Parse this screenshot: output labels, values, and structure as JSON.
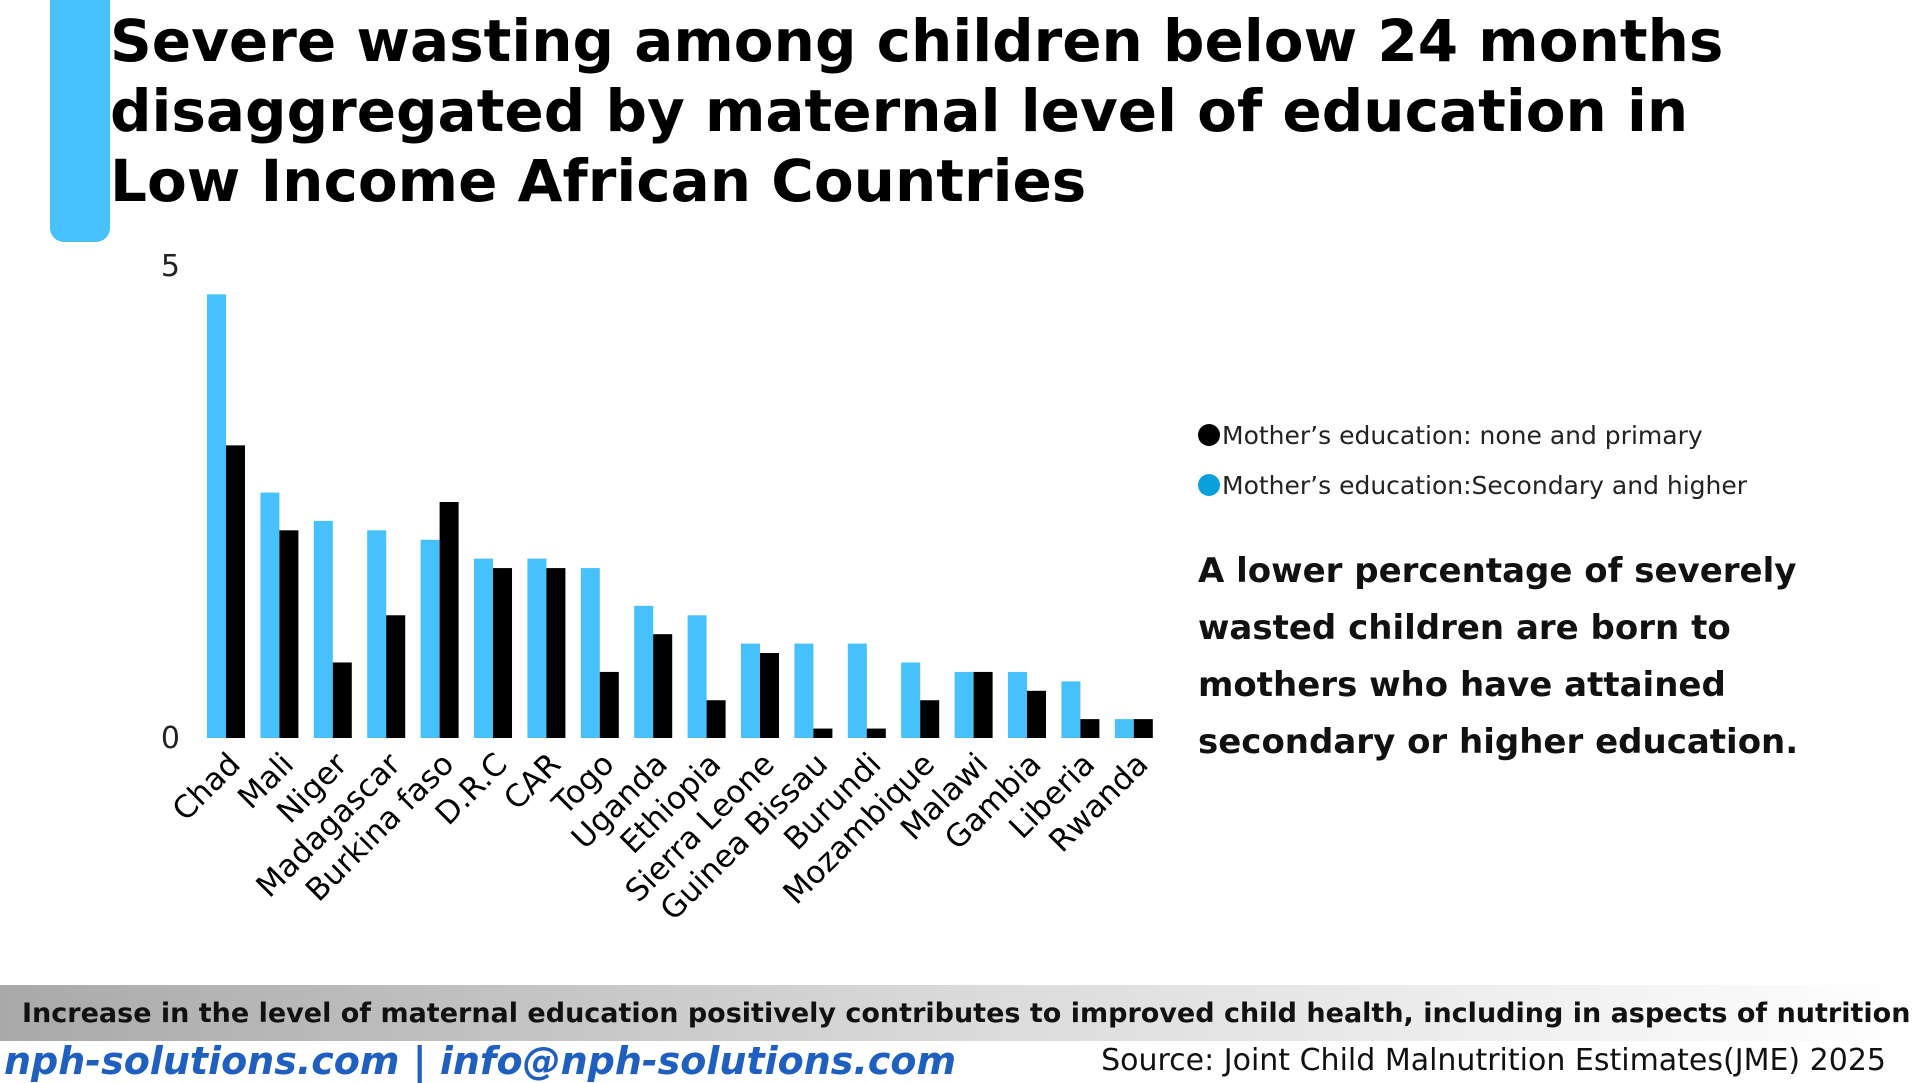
{
  "title": "Severe wasting among children below 24 months disaggregated by maternal level of education in Low Income African Countries",
  "colors": {
    "accent": "#47c1fc",
    "secondary_series": "#47c1fc",
    "primary_series": "#000000",
    "contact": "#1f5fc0"
  },
  "legend": {
    "none_primary": "Mother’s education: none and primary",
    "secondary_higher": "Mother’s education:Secondary and higher",
    "none_primary_color": "#000000",
    "secondary_higher_color": "#0aa0dc"
  },
  "insight": "A lower percentage of severely wasted children are born to mothers who have attained secondary or higher education.",
  "banner": "Increase in the level of maternal education positively  contributes to improved child health,  including in aspects of nutrition",
  "footer": {
    "contact": "nph-solutions.com | info@nph-solutions.com",
    "source": "Source: Joint Child Malnutrition Estimates(JME) 2025"
  },
  "chart_data": {
    "type": "bar",
    "title": "",
    "xlabel": "",
    "ylabel": "",
    "ylim": [
      0,
      5
    ],
    "yticks": [
      "0",
      "5"
    ],
    "grid": false,
    "legend_position": "right",
    "categories": [
      "Chad",
      "Mali",
      "Niger",
      "Madagascar",
      "Burkina faso",
      "D.R.C",
      "CAR",
      "Togo",
      "Uganda",
      "Ethiopia",
      "Sierra Leone",
      "Guinea Bissau",
      "Burundi",
      "Mozambique",
      "Malawi",
      "Gambia",
      "Liberia",
      "Rwanda"
    ],
    "series": [
      {
        "name": "Mother’s education:Secondary and higher",
        "color": "#47c1fc",
        "values": [
          4.7,
          2.6,
          2.3,
          2.2,
          2.1,
          1.9,
          1.9,
          1.8,
          1.4,
          1.3,
          1.0,
          1.0,
          1.0,
          0.8,
          0.7,
          0.7,
          0.6,
          0.2
        ]
      },
      {
        "name": "Mother’s education: none and primary",
        "color": "#000000",
        "values": [
          3.1,
          2.2,
          0.8,
          1.3,
          2.5,
          1.8,
          1.8,
          0.7,
          1.1,
          0.4,
          0.9,
          0.1,
          0.1,
          0.4,
          0.7,
          0.5,
          0.2,
          0.2
        ]
      }
    ]
  }
}
